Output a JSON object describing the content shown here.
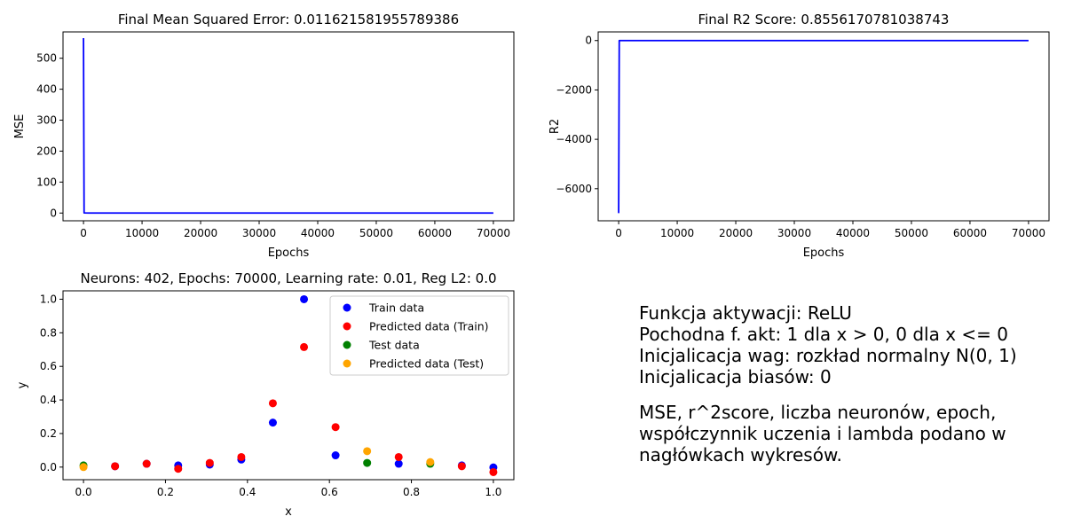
{
  "chart_data": [
    {
      "type": "line",
      "title": "Final Mean Squared Error: 0.011621581955789386",
      "xlabel": "Epochs",
      "ylabel": "MSE",
      "xlim": [
        -3500,
        73500
      ],
      "ylim": [
        -25,
        585
      ],
      "xticks": [
        0,
        10000,
        20000,
        30000,
        40000,
        50000,
        60000,
        70000
      ],
      "xtick_labels": [
        "0",
        "10000",
        "20000",
        "30000",
        "40000",
        "50000",
        "60000",
        "70000"
      ],
      "yticks": [
        0,
        100,
        200,
        300,
        400,
        500
      ],
      "ytick_labels": [
        "0",
        "100",
        "200",
        "300",
        "400",
        "500"
      ],
      "grid": false,
      "series": [
        {
          "color": "#0000ff",
          "x": [
            0,
            100,
            1000,
            70000
          ],
          "y": [
            565,
            0.5,
            0.05,
            0.0116
          ]
        }
      ]
    },
    {
      "type": "line",
      "title": "Final R2 Score: 0.8556170781038743",
      "xlabel": "Epochs",
      "ylabel": "R2",
      "xlim": [
        -3500,
        73500
      ],
      "ylim": [
        -7300,
        350
      ],
      "xticks": [
        0,
        10000,
        20000,
        30000,
        40000,
        50000,
        60000,
        70000
      ],
      "xtick_labels": [
        "0",
        "10000",
        "20000",
        "30000",
        "40000",
        "50000",
        "60000",
        "70000"
      ],
      "yticks": [
        0,
        -2000,
        -4000,
        -6000
      ],
      "ytick_labels": [
        "0",
        "−2000",
        "−4000",
        "−6000"
      ],
      "grid": false,
      "series": [
        {
          "color": "#0000ff",
          "x": [
            0,
            100,
            1000,
            70000
          ],
          "y": [
            -6990,
            0.2,
            0.8,
            0.856
          ]
        }
      ]
    },
    {
      "type": "scatter",
      "title": "Neurons: 402, Epochs: 70000, Learning rate: 0.01, Reg L2: 0.0",
      "xlabel": "x",
      "ylabel": "y",
      "xlim": [
        -0.05,
        1.05
      ],
      "ylim": [
        -0.075,
        1.05
      ],
      "xticks": [
        0.0,
        0.2,
        0.4,
        0.6,
        0.8,
        1.0
      ],
      "xtick_labels": [
        "0.0",
        "0.2",
        "0.4",
        "0.6",
        "0.8",
        "1.0"
      ],
      "yticks": [
        0.0,
        0.2,
        0.4,
        0.6,
        0.8,
        1.0
      ],
      "ytick_labels": [
        "0.0",
        "0.2",
        "0.4",
        "0.6",
        "0.8",
        "1.0"
      ],
      "grid": false,
      "legend_position": "top-right",
      "series": [
        {
          "name": "Train data",
          "color": "#0000ff",
          "x": [
            0.077,
            0.154,
            0.231,
            0.308,
            0.385,
            0.462,
            0.538,
            0.615,
            0.769,
            0.923,
            1.0
          ],
          "y": [
            0.005,
            0.02,
            0.01,
            0.015,
            0.045,
            0.265,
            1.0,
            0.07,
            0.02,
            0.01,
            -0.002
          ]
        },
        {
          "name": "Predicted data (Train)",
          "color": "#ff0000",
          "x": [
            0.077,
            0.154,
            0.231,
            0.308,
            0.385,
            0.462,
            0.538,
            0.615,
            0.769,
            0.923,
            1.0
          ],
          "y": [
            0.005,
            0.02,
            -0.01,
            0.025,
            0.06,
            0.38,
            0.715,
            0.238,
            0.06,
            0.005,
            -0.03
          ]
        },
        {
          "name": "Test data",
          "color": "#008000",
          "x": [
            0.0,
            0.692,
            0.846
          ],
          "y": [
            0.01,
            0.025,
            0.02
          ]
        },
        {
          "name": "Predicted data (Test)",
          "color": "#ffa500",
          "x": [
            0.0,
            0.692,
            0.846
          ],
          "y": [
            0.0,
            0.095,
            0.03
          ]
        }
      ]
    }
  ],
  "notes": {
    "line1": "Funkcja aktywacji: ReLU",
    "line2": "Pochodna f. akt: 1 dla x > 0, 0 dla x <= 0",
    "line3": "Inicjalicacja wag: rozkład normalny N(0, 1)",
    "line4": "Inicjalicacja biasów: 0",
    "paragraph": "MSE, r^2score, liczba neuronów, epoch, współczynnik uczenia i lambda podano w nagłówkach wykresów."
  }
}
